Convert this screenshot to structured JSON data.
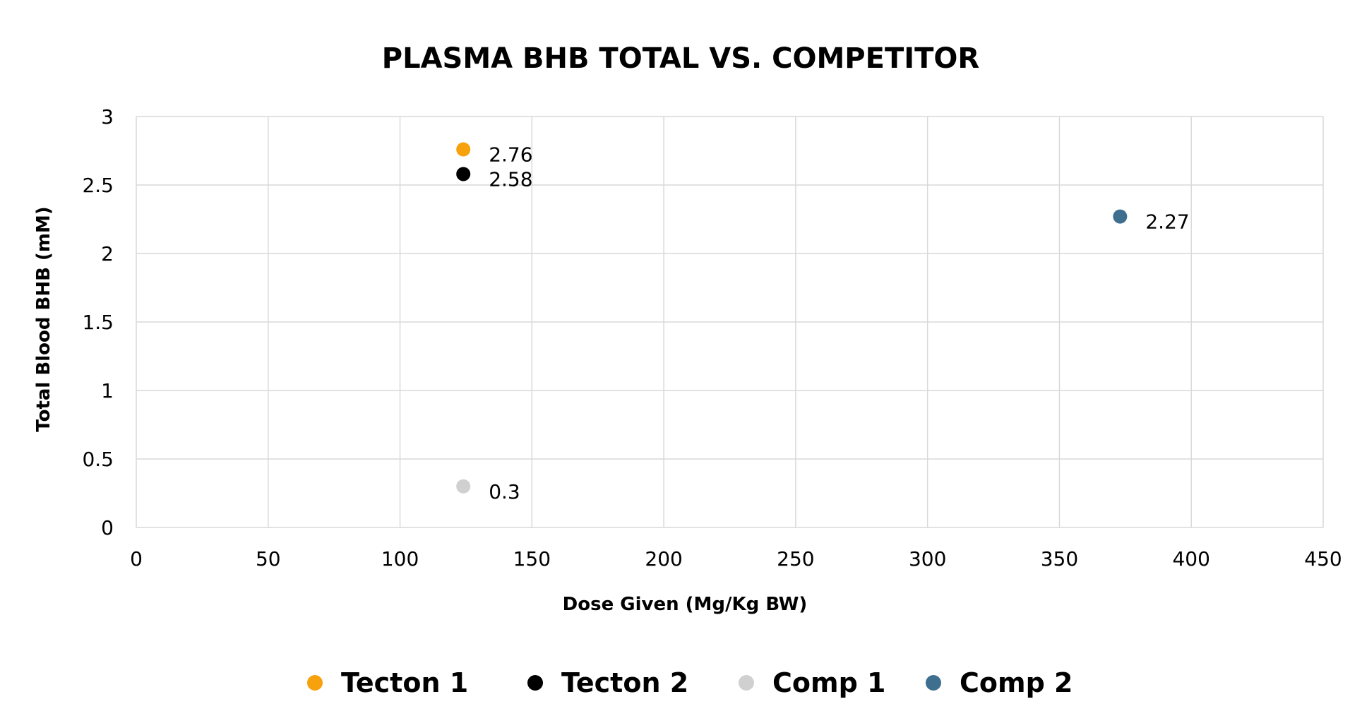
{
  "chart_data": {
    "type": "scatter",
    "title": "PLASMA BHB TOTAL VS. COMPETITOR",
    "xlabel": "Dose Given (Mg/Kg BW)",
    "ylabel": "Total Blood BHB (mM)",
    "xlim": [
      0,
      450
    ],
    "ylim": [
      0,
      3
    ],
    "x_ticks": [
      "0",
      "50",
      "100",
      "150",
      "200",
      "250",
      "300",
      "350",
      "400",
      "450"
    ],
    "y_ticks": [
      "0",
      "0.5",
      "1",
      "1.5",
      "2",
      "2.5",
      "3"
    ],
    "grid": true,
    "legend_position": "bottom",
    "series": [
      {
        "name": "Tecton 1",
        "color": "#f7a10d",
        "x": 124,
        "y": 2.76,
        "label": "2.76"
      },
      {
        "name": "Tecton 2",
        "color": "#000000",
        "x": 124,
        "y": 2.58,
        "label": "2.58"
      },
      {
        "name": "Comp 1",
        "color": "#d0d0d0",
        "x": 124,
        "y": 0.3,
        "label": "0.3"
      },
      {
        "name": "Comp 2",
        "color": "#3f6f8f",
        "x": 373,
        "y": 2.27,
        "label": "2.27"
      }
    ]
  }
}
